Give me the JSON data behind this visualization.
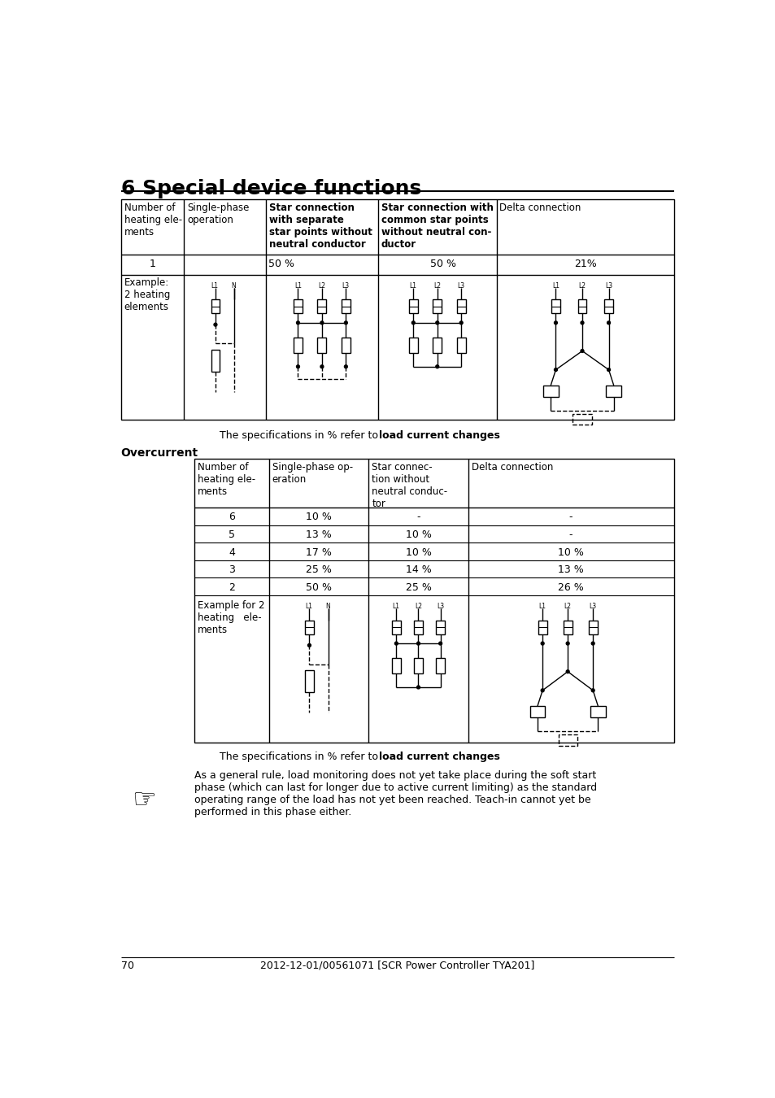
{
  "title": "6 Special device functions",
  "page_number": "70",
  "footer_text": "2012-12-01/00561071 [SCR Power Controller TYA201]",
  "table1_headers": [
    "Number of\nheating ele-\nments",
    "Single-phase\noperation",
    "Star connection\nwith separate\nstar points without\nneutral conductor",
    "Star connection with\ncommon star points\nwithout neutral con-\nductor",
    "Delta connection"
  ],
  "table2_headers": [
    "Number of\nheating ele-\nments",
    "Single-phase op-\neration",
    "Star connec-\ntion without\nneutral conduc-\ntor",
    "Delta connection"
  ],
  "table2_rows": [
    [
      "6",
      "10 %",
      "-",
      "-"
    ],
    [
      "5",
      "13 %",
      "10 %",
      "-"
    ],
    [
      "4",
      "17 %",
      "10 %",
      "10 %"
    ],
    [
      "3",
      "25 %",
      "14 %",
      "13 %"
    ],
    [
      "2",
      "50 %",
      "25 %",
      "26 %"
    ]
  ],
  "table1_row2_label": "Example:\n2 heating\nelements",
  "table2_row_last_label": "Example for 2\nheating   ele-\nments",
  "spec_text": "The specifications in % refer to ",
  "spec_bold": "load current changes",
  "overcurrent_label": "Overcurrent",
  "note_text": "As a general rule, load monitoring does not yet take place during the soft start\nphase (which can last for longer due to active current limiting) as the standard\noperating range of the load has not yet been reached. Teach-in cannot yet be\nperformed in this phase either.",
  "bg_color": "#ffffff",
  "text_color": "#000000"
}
